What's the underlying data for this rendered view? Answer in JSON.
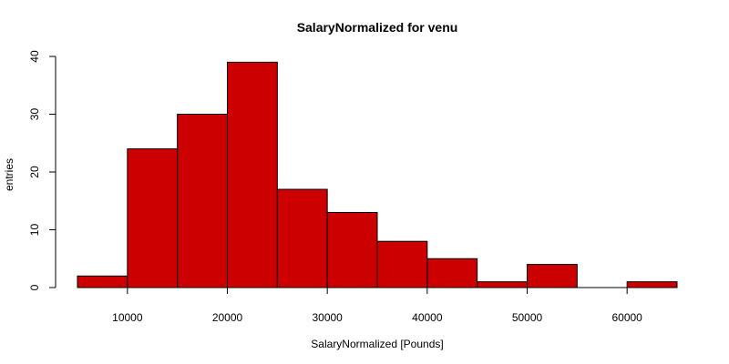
{
  "chart_data": {
    "type": "bar",
    "title": "SalaryNormalized for venu",
    "xlabel": "SalaryNormalized [Pounds]",
    "ylabel": "entries",
    "bin_edges": [
      5000,
      10000,
      15000,
      20000,
      25000,
      30000,
      35000,
      40000,
      45000,
      50000,
      55000,
      60000,
      65000
    ],
    "values": [
      2,
      24,
      30,
      39,
      17,
      13,
      8,
      5,
      1,
      4,
      0,
      1
    ],
    "x_ticks": [
      10000,
      20000,
      30000,
      40000,
      50000,
      60000
    ],
    "y_ticks": [
      0,
      10,
      20,
      30,
      40
    ],
    "xlim": [
      5000,
      65000
    ],
    "ylim": [
      0,
      40
    ],
    "bar_color": "#CC0000",
    "grid": false,
    "legend": "none"
  }
}
